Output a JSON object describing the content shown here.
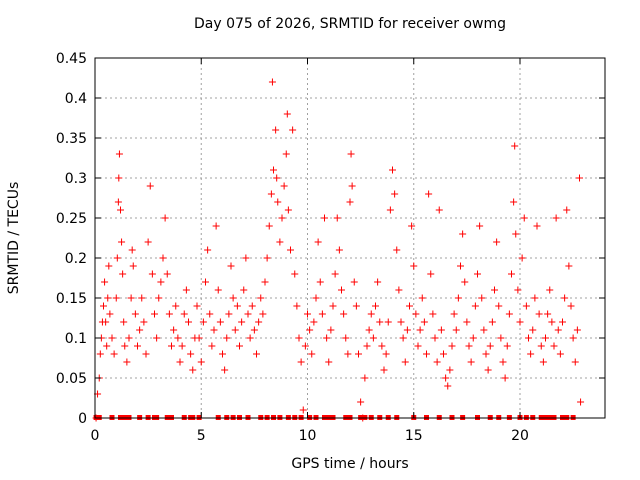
{
  "chart_data": {
    "type": "scatter",
    "title": "Day 075 of 2026, SRMTID for receiver owmg",
    "xlabel": "GPS time / hours",
    "ylabel": "SRMTID / TECUs",
    "xlim": [
      0,
      24
    ],
    "ylim": [
      0,
      0.45
    ],
    "xticks": [
      0,
      5,
      10,
      15,
      20
    ],
    "yticks": [
      0,
      0.05,
      0.1,
      0.15,
      0.2,
      0.25,
      0.3,
      0.35,
      0.4,
      0.45
    ],
    "grid": true,
    "marker": "+",
    "color": "#ff0000",
    "series": [
      {
        "name": "SRMTID",
        "points": [
          [
            0.05,
            0.0
          ],
          [
            0.12,
            0.03
          ],
          [
            0.2,
            0.05
          ],
          [
            0.25,
            0.08
          ],
          [
            0.3,
            0.1
          ],
          [
            0.35,
            0.12
          ],
          [
            0.4,
            0.14
          ],
          [
            0.45,
            0.17
          ],
          [
            0.5,
            0.12
          ],
          [
            0.55,
            0.09
          ],
          [
            0.6,
            0.15
          ],
          [
            0.65,
            0.19
          ],
          [
            0.7,
            0.13
          ],
          [
            0.8,
            0.1
          ],
          [
            0.9,
            0.08
          ],
          [
            1.0,
            0.15
          ],
          [
            1.05,
            0.2
          ],
          [
            1.1,
            0.27
          ],
          [
            1.12,
            0.3
          ],
          [
            1.15,
            0.33
          ],
          [
            1.2,
            0.26
          ],
          [
            1.25,
            0.22
          ],
          [
            1.3,
            0.18
          ],
          [
            1.35,
            0.12
          ],
          [
            1.4,
            0.09
          ],
          [
            1.5,
            0.07
          ],
          [
            1.6,
            0.1
          ],
          [
            1.7,
            0.15
          ],
          [
            1.75,
            0.21
          ],
          [
            1.8,
            0.19
          ],
          [
            1.9,
            0.13
          ],
          [
            2.0,
            0.09
          ],
          [
            2.1,
            0.11
          ],
          [
            2.2,
            0.15
          ],
          [
            2.3,
            0.12
          ],
          [
            2.4,
            0.08
          ],
          [
            2.5,
            0.22
          ],
          [
            2.6,
            0.29
          ],
          [
            2.7,
            0.18
          ],
          [
            2.8,
            0.13
          ],
          [
            2.9,
            0.1
          ],
          [
            3.0,
            0.15
          ],
          [
            3.1,
            0.17
          ],
          [
            3.2,
            0.2
          ],
          [
            3.3,
            0.25
          ],
          [
            3.4,
            0.18
          ],
          [
            3.5,
            0.13
          ],
          [
            3.6,
            0.09
          ],
          [
            3.7,
            0.11
          ],
          [
            3.8,
            0.14
          ],
          [
            3.9,
            0.1
          ],
          [
            4.0,
            0.07
          ],
          [
            4.1,
            0.09
          ],
          [
            4.2,
            0.13
          ],
          [
            4.3,
            0.16
          ],
          [
            4.4,
            0.12
          ],
          [
            4.5,
            0.08
          ],
          [
            4.6,
            0.06
          ],
          [
            4.7,
            0.1
          ],
          [
            4.8,
            0.14
          ],
          [
            4.9,
            0.1
          ],
          [
            5.0,
            0.07
          ],
          [
            5.1,
            0.12
          ],
          [
            5.2,
            0.17
          ],
          [
            5.3,
            0.21
          ],
          [
            5.4,
            0.13
          ],
          [
            5.5,
            0.09
          ],
          [
            5.6,
            0.11
          ],
          [
            5.7,
            0.24
          ],
          [
            5.8,
            0.16
          ],
          [
            5.9,
            0.12
          ],
          [
            6.0,
            0.08
          ],
          [
            6.1,
            0.06
          ],
          [
            6.2,
            0.1
          ],
          [
            6.3,
            0.13
          ],
          [
            6.4,
            0.19
          ],
          [
            6.5,
            0.15
          ],
          [
            6.6,
            0.11
          ],
          [
            6.7,
            0.14
          ],
          [
            6.8,
            0.09
          ],
          [
            6.9,
            0.12
          ],
          [
            7.0,
            0.16
          ],
          [
            7.1,
            0.2
          ],
          [
            7.2,
            0.13
          ],
          [
            7.3,
            0.1
          ],
          [
            7.4,
            0.14
          ],
          [
            7.5,
            0.11
          ],
          [
            7.6,
            0.08
          ],
          [
            7.7,
            0.12
          ],
          [
            7.8,
            0.15
          ],
          [
            7.9,
            0.13
          ],
          [
            8.0,
            0.17
          ],
          [
            8.1,
            0.2
          ],
          [
            8.2,
            0.24
          ],
          [
            8.3,
            0.28
          ],
          [
            8.35,
            0.42
          ],
          [
            8.4,
            0.31
          ],
          [
            8.5,
            0.36
          ],
          [
            8.55,
            0.3
          ],
          [
            8.6,
            0.27
          ],
          [
            8.7,
            0.22
          ],
          [
            8.8,
            0.25
          ],
          [
            8.9,
            0.29
          ],
          [
            9.0,
            0.33
          ],
          [
            9.05,
            0.38
          ],
          [
            9.1,
            0.26
          ],
          [
            9.2,
            0.21
          ],
          [
            9.3,
            0.36
          ],
          [
            9.4,
            0.18
          ],
          [
            9.5,
            0.14
          ],
          [
            9.6,
            0.1
          ],
          [
            9.7,
            0.07
          ],
          [
            9.8,
            0.01
          ],
          [
            9.9,
            0.09
          ],
          [
            10.0,
            0.13
          ],
          [
            10.1,
            0.11
          ],
          [
            10.2,
            0.08
          ],
          [
            10.3,
            0.12
          ],
          [
            10.4,
            0.15
          ],
          [
            10.5,
            0.22
          ],
          [
            10.6,
            0.17
          ],
          [
            10.7,
            0.13
          ],
          [
            10.8,
            0.25
          ],
          [
            10.9,
            0.1
          ],
          [
            11.0,
            0.07
          ],
          [
            11.1,
            0.11
          ],
          [
            11.2,
            0.14
          ],
          [
            11.3,
            0.18
          ],
          [
            11.4,
            0.25
          ],
          [
            11.5,
            0.21
          ],
          [
            11.6,
            0.16
          ],
          [
            11.7,
            0.13
          ],
          [
            11.8,
            0.1
          ],
          [
            11.9,
            0.08
          ],
          [
            12.0,
            0.27
          ],
          [
            12.05,
            0.33
          ],
          [
            12.1,
            0.29
          ],
          [
            12.2,
            0.17
          ],
          [
            12.3,
            0.14
          ],
          [
            12.4,
            0.08
          ],
          [
            12.5,
            0.02
          ],
          [
            12.6,
            0.0
          ],
          [
            12.7,
            0.05
          ],
          [
            12.8,
            0.09
          ],
          [
            12.9,
            0.11
          ],
          [
            13.0,
            0.13
          ],
          [
            13.1,
            0.1
          ],
          [
            13.2,
            0.14
          ],
          [
            13.3,
            0.17
          ],
          [
            13.4,
            0.12
          ],
          [
            13.5,
            0.09
          ],
          [
            13.6,
            0.06
          ],
          [
            13.7,
            0.08
          ],
          [
            13.8,
            0.12
          ],
          [
            13.9,
            0.26
          ],
          [
            14.0,
            0.31
          ],
          [
            14.1,
            0.28
          ],
          [
            14.2,
            0.21
          ],
          [
            14.3,
            0.16
          ],
          [
            14.4,
            0.12
          ],
          [
            14.5,
            0.1
          ],
          [
            14.6,
            0.07
          ],
          [
            14.7,
            0.11
          ],
          [
            14.8,
            0.14
          ],
          [
            14.9,
            0.24
          ],
          [
            15.0,
            0.19
          ],
          [
            15.1,
            0.13
          ],
          [
            15.2,
            0.09
          ],
          [
            15.3,
            0.11
          ],
          [
            15.4,
            0.15
          ],
          [
            15.5,
            0.12
          ],
          [
            15.6,
            0.08
          ],
          [
            15.7,
            0.28
          ],
          [
            15.8,
            0.18
          ],
          [
            15.9,
            0.13
          ],
          [
            16.0,
            0.1
          ],
          [
            16.1,
            0.07
          ],
          [
            16.2,
            0.26
          ],
          [
            16.3,
            0.11
          ],
          [
            16.4,
            0.08
          ],
          [
            16.5,
            0.05
          ],
          [
            16.6,
            0.04
          ],
          [
            16.7,
            0.06
          ],
          [
            16.8,
            0.09
          ],
          [
            16.9,
            0.13
          ],
          [
            17.0,
            0.11
          ],
          [
            17.1,
            0.15
          ],
          [
            17.2,
            0.19
          ],
          [
            17.3,
            0.23
          ],
          [
            17.4,
            0.17
          ],
          [
            17.5,
            0.12
          ],
          [
            17.6,
            0.09
          ],
          [
            17.7,
            0.07
          ],
          [
            17.8,
            0.1
          ],
          [
            17.9,
            0.14
          ],
          [
            18.0,
            0.18
          ],
          [
            18.1,
            0.24
          ],
          [
            18.2,
            0.15
          ],
          [
            18.3,
            0.11
          ],
          [
            18.4,
            0.08
          ],
          [
            18.5,
            0.06
          ],
          [
            18.6,
            0.09
          ],
          [
            18.7,
            0.12
          ],
          [
            18.8,
            0.16
          ],
          [
            18.9,
            0.22
          ],
          [
            19.0,
            0.14
          ],
          [
            19.1,
            0.1
          ],
          [
            19.2,
            0.07
          ],
          [
            19.3,
            0.05
          ],
          [
            19.4,
            0.09
          ],
          [
            19.5,
            0.13
          ],
          [
            19.6,
            0.18
          ],
          [
            19.7,
            0.27
          ],
          [
            19.75,
            0.34
          ],
          [
            19.8,
            0.23
          ],
          [
            19.9,
            0.16
          ],
          [
            20.0,
            0.12
          ],
          [
            20.1,
            0.2
          ],
          [
            20.2,
            0.25
          ],
          [
            20.3,
            0.14
          ],
          [
            20.4,
            0.1
          ],
          [
            20.5,
            0.08
          ],
          [
            20.6,
            0.11
          ],
          [
            20.7,
            0.15
          ],
          [
            20.8,
            0.24
          ],
          [
            20.9,
            0.13
          ],
          [
            21.0,
            0.09
          ],
          [
            21.1,
            0.07
          ],
          [
            21.2,
            0.1
          ],
          [
            21.3,
            0.13
          ],
          [
            21.4,
            0.16
          ],
          [
            21.5,
            0.12
          ],
          [
            21.6,
            0.09
          ],
          [
            21.7,
            0.25
          ],
          [
            21.8,
            0.11
          ],
          [
            21.9,
            0.08
          ],
          [
            22.0,
            0.12
          ],
          [
            22.1,
            0.15
          ],
          [
            22.2,
            0.26
          ],
          [
            22.3,
            0.19
          ],
          [
            22.4,
            0.14
          ],
          [
            22.5,
            0.1
          ],
          [
            22.6,
            0.07
          ],
          [
            22.7,
            0.11
          ],
          [
            22.8,
            0.3
          ],
          [
            22.85,
            0.02
          ]
        ]
      }
    ],
    "zero_points_x": [
      0.05,
      0.1,
      0.15,
      0.2,
      0.8,
      1.2,
      1.3,
      1.4,
      1.5,
      1.6,
      2.1,
      2.5,
      2.8,
      2.9,
      3.4,
      3.6,
      4.2,
      4.5,
      4.6,
      4.9,
      5.8,
      6.2,
      6.5,
      6.8,
      7.2,
      7.8,
      8.1,
      8.4,
      8.7,
      9.1,
      9.4,
      9.7,
      10.1,
      10.4,
      10.8,
      11.0,
      11.1,
      11.2,
      11.8,
      11.9,
      12.0,
      12.5,
      12.6,
      12.7,
      13.0,
      13.4,
      13.8,
      14.2,
      15.0,
      15.6,
      16.2,
      16.8,
      17.3,
      18.0,
      18.6,
      19.0,
      19.5,
      20.0,
      20.3,
      20.6,
      21.0,
      21.2,
      21.3,
      21.4,
      21.5,
      21.6,
      22.0,
      22.2,
      22.5
    ]
  }
}
